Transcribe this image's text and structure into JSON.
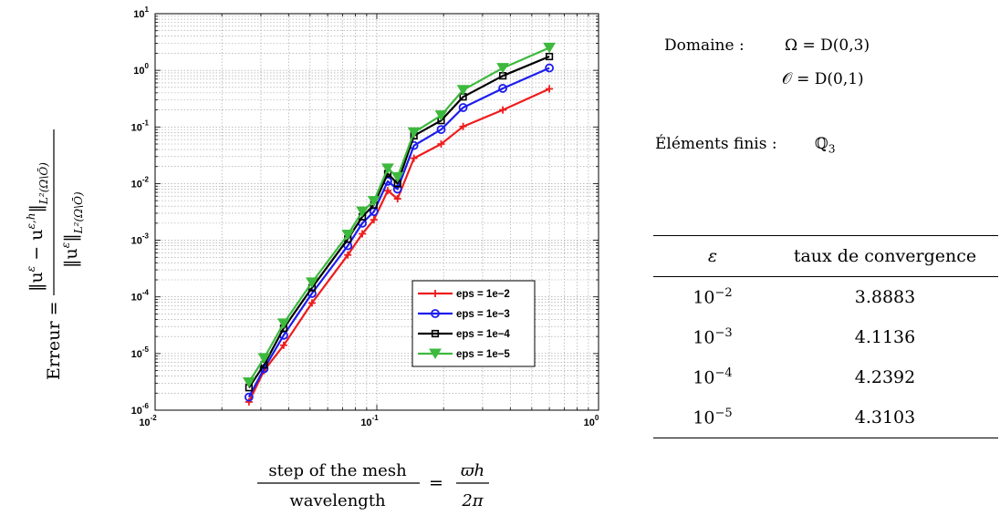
{
  "chart_data": {
    "type": "line",
    "x_scale": "log",
    "y_scale": "log",
    "xlim": [
      0.01,
      1
    ],
    "ylim": [
      1e-06,
      10
    ],
    "grid": true,
    "legend_position": "bottom-right",
    "x_ticks": [
      {
        "mantissa": "10",
        "exp": "-2"
      },
      {
        "mantissa": "10",
        "exp": "-1"
      },
      {
        "mantissa": "10",
        "exp": "0"
      }
    ],
    "y_ticks": [
      {
        "mantissa": "10",
        "exp": "-6"
      },
      {
        "mantissa": "10",
        "exp": "-5"
      },
      {
        "mantissa": "10",
        "exp": "-4"
      },
      {
        "mantissa": "10",
        "exp": "-3"
      },
      {
        "mantissa": "10",
        "exp": "-2"
      },
      {
        "mantissa": "10",
        "exp": "-1"
      },
      {
        "mantissa": "10",
        "exp": "0"
      },
      {
        "mantissa": "10",
        "exp": "1"
      }
    ],
    "x": [
      0.0265,
      0.031,
      0.038,
      0.051,
      0.074,
      0.086,
      0.097,
      0.112,
      0.124,
      0.147,
      0.195,
      0.245,
      0.37,
      0.6
    ],
    "series": [
      {
        "name": "eps = 1e−2",
        "color": "#ee1c1c",
        "marker": "plus",
        "values": [
          1.4e-06,
          5e-06,
          1.4e-05,
          7.8e-05,
          0.00055,
          0.0013,
          0.0023,
          0.0075,
          0.0054,
          0.028,
          0.05,
          0.102,
          0.2,
          0.47
        ]
      },
      {
        "name": "eps = 1e−3",
        "color": "#1c1cee",
        "marker": "circle",
        "values": [
          1.7e-06,
          5.4e-06,
          2.1e-05,
          0.000115,
          0.0008,
          0.002,
          0.0032,
          0.011,
          0.008,
          0.047,
          0.09,
          0.22,
          0.48,
          1.1
        ]
      },
      {
        "name": "eps = 1e−4",
        "color": "#000000",
        "marker": "square",
        "values": [
          2.5e-06,
          6.3e-06,
          2.8e-05,
          0.000145,
          0.00105,
          0.0026,
          0.0042,
          0.015,
          0.01,
          0.07,
          0.13,
          0.34,
          0.8,
          1.75
        ]
      },
      {
        "name": "eps = 1e−5",
        "color": "#3db93d",
        "marker": "triangle-down",
        "values": [
          3.1e-06,
          8.3e-06,
          3.4e-05,
          0.00018,
          0.00125,
          0.0032,
          0.0049,
          0.0185,
          0.013,
          0.08,
          0.16,
          0.45,
          1.1,
          2.5
        ]
      }
    ]
  },
  "axis_labels": {
    "y_prefix": "Erreur =",
    "y_num_norm_left": "‖u",
    "y_num_eps": "ε",
    "y_num_minus": " − u",
    "y_num_eps_h": "ε,h",
    "y_num_norm_right": "‖",
    "y_num_sub": "L²(Ω\\Ō)",
    "y_den_norm_left": "‖u",
    "y_den_eps": "ε",
    "y_den_norm_right": "‖",
    "y_den_sub": "L²(Ω\\Ō)",
    "x_num": "step of the mesh",
    "x_den": "wavelength",
    "x_equals": "=",
    "x_rhs_num": "ϖh",
    "x_rhs_den": "2π"
  },
  "info": {
    "domain_label": "Domaine :",
    "omega_eq": "Ω = D(0,3)",
    "obstacle_eq": "𝒪 = D(0,1)",
    "elements_label": "Éléments finis :",
    "elements_value": "ℚ",
    "elements_sub": "3"
  },
  "table": {
    "header_eps": "ε",
    "header_rate": "taux de convergence",
    "rows": [
      {
        "base": "10",
        "exp": "−2",
        "rate": "3.8883"
      },
      {
        "base": "10",
        "exp": "−3",
        "rate": "4.1136"
      },
      {
        "base": "10",
        "exp": "−4",
        "rate": "4.2392"
      },
      {
        "base": "10",
        "exp": "−5",
        "rate": "4.3103"
      }
    ]
  }
}
